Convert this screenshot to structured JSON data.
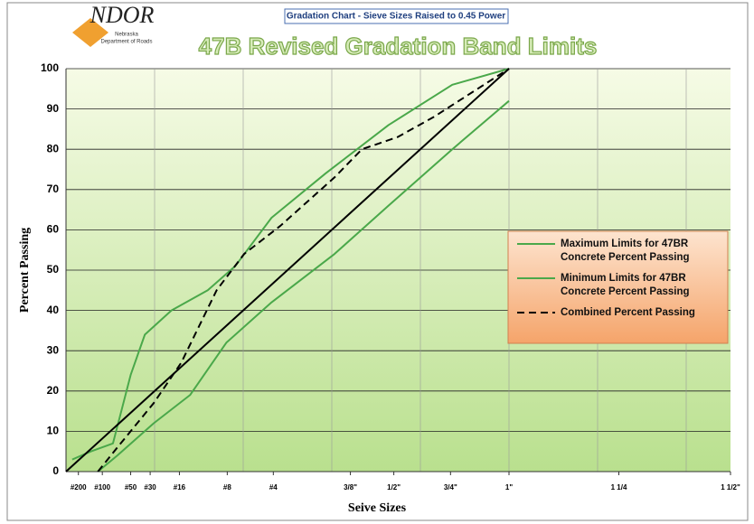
{
  "chart_data": {
    "type": "line",
    "logo": {
      "text": "NDOR",
      "line1": "Nebraska",
      "line2": "Department of Roads"
    },
    "subtitle": "Gradation Chart - Sieve Sizes Raised to 0.45 Power",
    "title": "47B Revised Gradation Band Limits",
    "xlabel": "Seive Sizes",
    "ylabel": "Percent Passing",
    "xlim": [
      0,
      7.5
    ],
    "ylim": [
      0,
      100
    ],
    "yticks": [
      0,
      10,
      20,
      30,
      40,
      50,
      60,
      70,
      80,
      90,
      100
    ],
    "xgrid": [
      0,
      1,
      2,
      3,
      4,
      5,
      6,
      7
    ],
    "xticks": [
      {
        "value": 0.14,
        "label": "#200"
      },
      {
        "value": 0.41,
        "label": "#100"
      },
      {
        "value": 0.73,
        "label": "#50"
      },
      {
        "value": 0.95,
        "label": "#30"
      },
      {
        "value": 1.28,
        "label": "#16"
      },
      {
        "value": 1.82,
        "label": "#8"
      },
      {
        "value": 2.34,
        "label": "#4"
      },
      {
        "value": 3.21,
        "label": "3/8\""
      },
      {
        "value": 3.7,
        "label": "1/2\""
      },
      {
        "value": 4.34,
        "label": "3/4\""
      },
      {
        "value": 5.0,
        "label": "1\""
      },
      {
        "value": 6.24,
        "label": "1 1/4"
      },
      {
        "value": 7.5,
        "label": "1 1/2\""
      }
    ],
    "grid": true,
    "legend": "right",
    "series": [
      {
        "name": "Maximum Limits for 47BR Concrete Percent Passing",
        "color": "#4aa84a",
        "dash": false,
        "x": [
          0.07,
          0.28,
          0.53,
          0.73,
          0.89,
          1.19,
          1.6,
          1.91,
          2.32,
          2.93,
          3.64,
          4.36,
          5.0
        ],
        "values": [
          3,
          5,
          7,
          24,
          34,
          40,
          45,
          51,
          63,
          74,
          86,
          96,
          100
        ]
      },
      {
        "name": "Minimum Limits for 47BR Concrete Percent Passing",
        "color": "#4aa84a",
        "dash": false,
        "x": [
          0.36,
          0.58,
          0.99,
          1.4,
          1.81,
          2.32,
          3.03,
          3.64,
          4.36,
          5.0
        ],
        "values": [
          0,
          4,
          12,
          19,
          32,
          42,
          54,
          66,
          80,
          92
        ]
      },
      {
        "name": "Combined Percent Passing",
        "color": "#000000",
        "dash": true,
        "x": [
          0.36,
          0.58,
          0.99,
          1.3,
          1.7,
          2.01,
          2.42,
          3.03,
          3.34,
          3.74,
          4.15,
          5.0
        ],
        "values": [
          0,
          6,
          17,
          27,
          45,
          54,
          61,
          73,
          80,
          83,
          88,
          100
        ]
      },
      {
        "color": "#000000",
        "dash": false,
        "x": [
          0,
          5.0
        ],
        "values": [
          0,
          100
        ]
      }
    ]
  }
}
